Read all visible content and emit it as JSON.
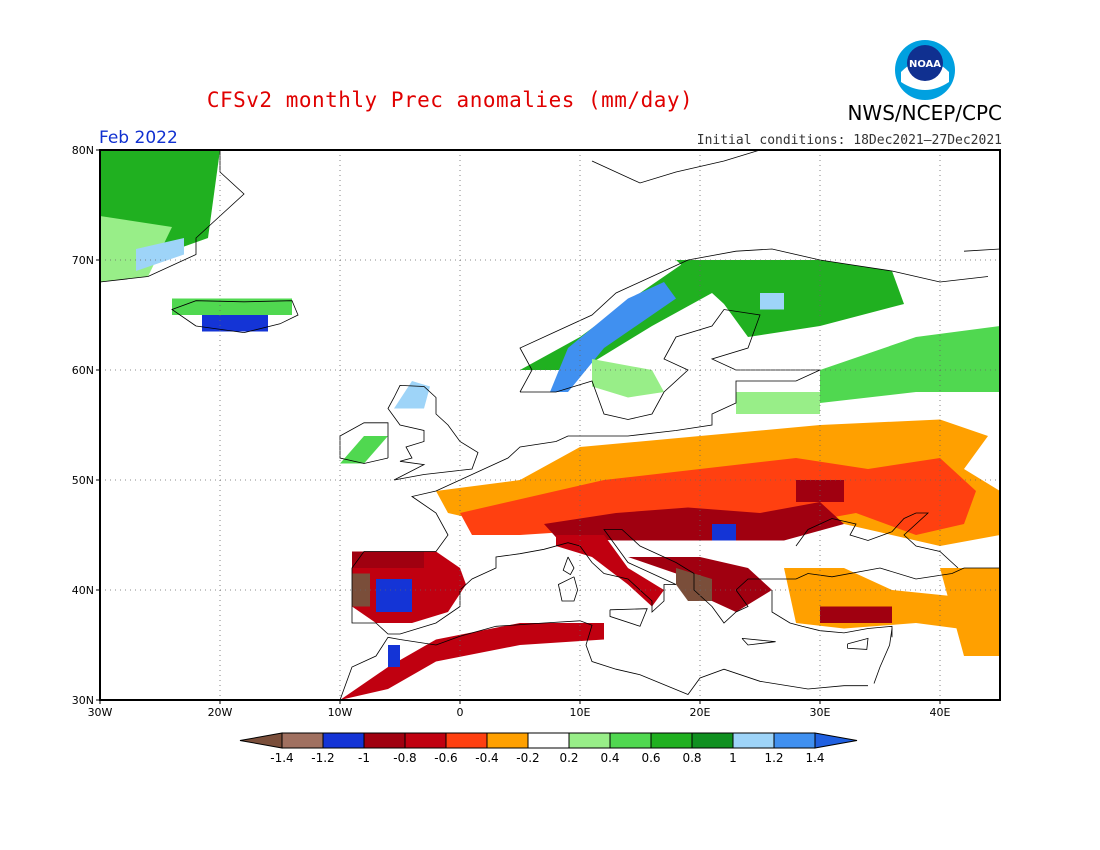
{
  "header": {
    "title": "CFSv2 monthly Prec anomalies (mm/day)",
    "agency": "NWS/NCEP/CPC",
    "logo_text": "NOAA",
    "month": "Feb 2022",
    "initial_conditions": "Initial conditions: 18Dec2021–27Dec2021"
  },
  "map": {
    "region": "Europe",
    "lon_range": [
      -30,
      45
    ],
    "lat_range": [
      30,
      80
    ],
    "lon_ticks": [
      {
        "value": -30,
        "label": "30W"
      },
      {
        "value": -20,
        "label": "20W"
      },
      {
        "value": -10,
        "label": "10W"
      },
      {
        "value": 0,
        "label": "0"
      },
      {
        "value": 10,
        "label": "10E"
      },
      {
        "value": 20,
        "label": "20E"
      },
      {
        "value": 30,
        "label": "30E"
      },
      {
        "value": 40,
        "label": "40E"
      }
    ],
    "lat_ticks": [
      {
        "value": 30,
        "label": "30N"
      },
      {
        "value": 40,
        "label": "40N"
      },
      {
        "value": 50,
        "label": "50N"
      },
      {
        "value": 60,
        "label": "60N"
      },
      {
        "value": 70,
        "label": "70N"
      },
      {
        "value": 80,
        "label": "80N"
      }
    ],
    "grid": true,
    "anomaly_regions": [
      {
        "name": "greenland-wet",
        "class": 0.6,
        "polygon": [
          [
            -30,
            68.5
          ],
          [
            -21,
            72
          ],
          [
            -20,
            80
          ],
          [
            -30,
            80
          ]
        ]
      },
      {
        "name": "greenland-wet-light",
        "class": 0.3,
        "polygon": [
          [
            -30,
            68
          ],
          [
            -26,
            68.5
          ],
          [
            -24,
            73
          ],
          [
            -30,
            74
          ]
        ]
      },
      {
        "name": "greenland-blue",
        "class": 1.1,
        "polygon": [
          [
            -27,
            69
          ],
          [
            -23,
            70.5
          ],
          [
            -23,
            72
          ],
          [
            -27,
            71
          ]
        ]
      },
      {
        "name": "iceland-blue",
        "class": -1.1,
        "polygon": [
          [
            -21.5,
            63.5
          ],
          [
            -16,
            63.5
          ],
          [
            -16,
            65
          ],
          [
            -21.5,
            65
          ]
        ]
      },
      {
        "name": "iceland-green",
        "class": 0.5,
        "polygon": [
          [
            -24,
            65
          ],
          [
            -14,
            65
          ],
          [
            -14,
            66.5
          ],
          [
            -24,
            66.5
          ]
        ]
      },
      {
        "name": "scand-coast-green",
        "class": 0.6,
        "polygon": [
          [
            5,
            60
          ],
          [
            10,
            63
          ],
          [
            15,
            67
          ],
          [
            19,
            70
          ],
          [
            22,
            70
          ],
          [
            21,
            67
          ],
          [
            16,
            64
          ],
          [
            10,
            60
          ]
        ]
      },
      {
        "name": "norway-blue",
        "class": 1.2,
        "polygon": [
          [
            7.5,
            58
          ],
          [
            9,
            62
          ],
          [
            14,
            66.5
          ],
          [
            17,
            68
          ],
          [
            18,
            66.5
          ],
          [
            12,
            62
          ],
          [
            9,
            58
          ]
        ]
      },
      {
        "name": "sweden-light",
        "class": 0.3,
        "polygon": [
          [
            11,
            61
          ],
          [
            16,
            60
          ],
          [
            17,
            58
          ],
          [
            14,
            57.5
          ],
          [
            11,
            58.5
          ]
        ]
      },
      {
        "name": "finland-north-green",
        "class": 0.6,
        "polygon": [
          [
            18,
            70
          ],
          [
            30,
            70
          ],
          [
            36,
            69
          ],
          [
            37,
            66
          ],
          [
            30,
            64
          ],
          [
            24,
            63
          ],
          [
            22,
            66
          ]
        ]
      },
      {
        "name": "finland-blue",
        "class": 1.1,
        "polygon": [
          [
            25,
            67
          ],
          [
            27,
            67
          ],
          [
            27,
            65.5
          ],
          [
            25,
            65.5
          ]
        ]
      },
      {
        "name": "russia-green",
        "class": 0.5,
        "polygon": [
          [
            30,
            60
          ],
          [
            38,
            63
          ],
          [
            45,
            64
          ],
          [
            45,
            58
          ],
          [
            38,
            58
          ],
          [
            30,
            57
          ]
        ]
      },
      {
        "name": "baltic-light",
        "class": 0.3,
        "polygon": [
          [
            23,
            58
          ],
          [
            30,
            58
          ],
          [
            30,
            56
          ],
          [
            23,
            56
          ]
        ]
      },
      {
        "name": "ireland-green",
        "class": 0.4,
        "polygon": [
          [
            -10,
            51.5
          ],
          [
            -8,
            54
          ],
          [
            -6,
            54
          ],
          [
            -8,
            51.5
          ]
        ]
      },
      {
        "name": "scotland-blue",
        "class": 1.1,
        "polygon": [
          [
            -5.5,
            56.5
          ],
          [
            -4,
            59
          ],
          [
            -2.5,
            58.5
          ],
          [
            -3,
            56.5
          ]
        ]
      },
      {
        "name": "central-orange",
        "class": -0.3,
        "polygon": [
          [
            -2,
            49
          ],
          [
            5,
            50
          ],
          [
            10,
            53
          ],
          [
            20,
            54
          ],
          [
            30,
            55
          ],
          [
            40,
            55.5
          ],
          [
            44,
            54
          ],
          [
            42,
            51
          ],
          [
            45,
            49
          ],
          [
            45,
            45
          ],
          [
            40,
            44
          ],
          [
            32,
            46
          ],
          [
            28,
            48
          ],
          [
            22,
            47
          ],
          [
            15,
            48
          ],
          [
            8,
            46
          ],
          [
            3,
            46
          ],
          [
            -1,
            47
          ]
        ]
      },
      {
        "name": "central-red",
        "class": -0.5,
        "polygon": [
          [
            0,
            47
          ],
          [
            6,
            48.5
          ],
          [
            12,
            50
          ],
          [
            20,
            51
          ],
          [
            28,
            52
          ],
          [
            34,
            51
          ],
          [
            40,
            52
          ],
          [
            43,
            49
          ],
          [
            42,
            46
          ],
          [
            38,
            45
          ],
          [
            33,
            47
          ],
          [
            28,
            46
          ],
          [
            20,
            46
          ],
          [
            12,
            45.5
          ],
          [
            5,
            45
          ],
          [
            1,
            45
          ]
        ]
      },
      {
        "name": "central-darkred",
        "class": -0.9,
        "polygon": [
          [
            7,
            46
          ],
          [
            13,
            47
          ],
          [
            19,
            47.5
          ],
          [
            25,
            47
          ],
          [
            30,
            48
          ],
          [
            32,
            46
          ],
          [
            27,
            44.5
          ],
          [
            20,
            44.5
          ],
          [
            13,
            44.5
          ],
          [
            8,
            44.8
          ]
        ]
      },
      {
        "name": "russia-darkred",
        "class": -0.9,
        "polygon": [
          [
            28,
            50
          ],
          [
            32,
            50
          ],
          [
            32,
            48
          ],
          [
            28,
            48
          ]
        ]
      },
      {
        "name": "italy-red",
        "class": -0.6,
        "polygon": [
          [
            8,
            45
          ],
          [
            12,
            45
          ],
          [
            14,
            42
          ],
          [
            17,
            40
          ],
          [
            16,
            38.5
          ],
          [
            14,
            40.5
          ],
          [
            11,
            43
          ],
          [
            8,
            44
          ]
        ]
      },
      {
        "name": "balkans-red",
        "class": -0.8,
        "polygon": [
          [
            14,
            43
          ],
          [
            20,
            43
          ],
          [
            24,
            42
          ],
          [
            26,
            40
          ],
          [
            23,
            38
          ],
          [
            20,
            39.5
          ],
          [
            18,
            41.5
          ]
        ]
      },
      {
        "name": "balkans-brown",
        "class": -1.5,
        "polygon": [
          [
            18,
            42
          ],
          [
            21,
            41
          ],
          [
            21,
            39
          ],
          [
            19,
            39
          ],
          [
            18,
            40.5
          ]
        ]
      },
      {
        "name": "serbia-blue",
        "class": -1.2,
        "polygon": [
          [
            21,
            46
          ],
          [
            23,
            46
          ],
          [
            23,
            44.5
          ],
          [
            21,
            44.5
          ]
        ]
      },
      {
        "name": "turkey-orange",
        "class": -0.3,
        "polygon": [
          [
            27,
            42
          ],
          [
            32,
            42
          ],
          [
            36,
            40
          ],
          [
            45,
            39
          ],
          [
            45,
            36
          ],
          [
            38,
            37
          ],
          [
            32,
            36.5
          ],
          [
            28,
            37
          ]
        ]
      },
      {
        "name": "turkey-darkred",
        "class": -0.8,
        "polygon": [
          [
            30,
            38.5
          ],
          [
            36,
            38.5
          ],
          [
            36,
            37
          ],
          [
            30,
            37
          ]
        ]
      },
      {
        "name": "iberia-red",
        "class": -0.7,
        "polygon": [
          [
            -9,
            43.5
          ],
          [
            -2,
            43.5
          ],
          [
            0,
            42
          ],
          [
            0.5,
            40.5
          ],
          [
            -1,
            38
          ],
          [
            -4,
            37
          ],
          [
            -7,
            37
          ],
          [
            -9,
            38.5
          ]
        ]
      },
      {
        "name": "iberia-darkred",
        "class": -0.9,
        "polygon": [
          [
            -9,
            43.5
          ],
          [
            -3,
            43.5
          ],
          [
            -3,
            42
          ],
          [
            -9,
            42
          ]
        ]
      },
      {
        "name": "iberia-blue",
        "class": -1.2,
        "polygon": [
          [
            -7,
            41
          ],
          [
            -4,
            41
          ],
          [
            -4,
            38
          ],
          [
            -7,
            38
          ]
        ]
      },
      {
        "name": "iberia-brown",
        "class": -1.5,
        "polygon": [
          [
            -9,
            41.5
          ],
          [
            -7.5,
            41.5
          ],
          [
            -7.5,
            38.5
          ],
          [
            -9,
            38.5
          ]
        ]
      },
      {
        "name": "morocco-red",
        "class": -0.7,
        "polygon": [
          [
            -10,
            30
          ],
          [
            -6,
            33
          ],
          [
            -2,
            35.5
          ],
          [
            5,
            37
          ],
          [
            12,
            37
          ],
          [
            12,
            35.5
          ],
          [
            5,
            35
          ],
          [
            -2,
            33.5
          ],
          [
            -6,
            31
          ]
        ]
      },
      {
        "name": "morocco-blue",
        "class": -1.2,
        "polygon": [
          [
            -6,
            35
          ],
          [
            -5,
            35
          ],
          [
            -5,
            33
          ],
          [
            -6,
            33
          ]
        ]
      },
      {
        "name": "se-orange",
        "class": -0.3,
        "polygon": [
          [
            40,
            42
          ],
          [
            45,
            42
          ],
          [
            45,
            34
          ],
          [
            42,
            34
          ]
        ]
      }
    ]
  },
  "colorbar": {
    "labels": [
      "-1.4",
      "-1.2",
      "-1",
      "-0.8",
      "-0.6",
      "-0.4",
      "-0.2",
      "0.2",
      "0.4",
      "0.6",
      "0.8",
      "1",
      "1.2",
      "1.4"
    ],
    "colors": [
      "#7a4e3a",
      "#a07060",
      "#1434d6",
      "#a00010",
      "#c00010",
      "#ff4010",
      "#ffa000",
      "#ffffff",
      "#98ee88",
      "#50d850",
      "#20b020",
      "#109020",
      "#9ed4f8",
      "#4090f0",
      "#2060e0"
    ]
  }
}
